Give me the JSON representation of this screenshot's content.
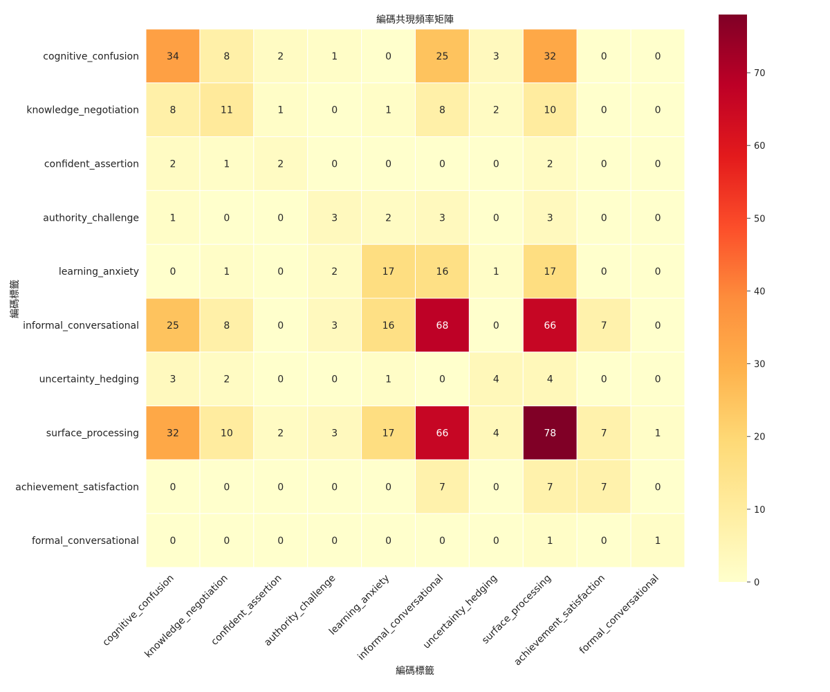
{
  "chart_data": {
    "type": "heatmap",
    "title": "編碼共現頻率矩陣",
    "xlabel": "編碼標籤",
    "ylabel": "編碼標籤",
    "x_categories": [
      "cognitive_confusion",
      "knowledge_negotiation",
      "confident_assertion",
      "authority_challenge",
      "learning_anxiety",
      "informal_conversational",
      "uncertainty_hedging",
      "surface_processing",
      "achievement_satisfaction",
      "formal_conversational"
    ],
    "y_categories": [
      "cognitive_confusion",
      "knowledge_negotiation",
      "confident_assertion",
      "authority_challenge",
      "learning_anxiety",
      "informal_conversational",
      "uncertainty_hedging",
      "surface_processing",
      "achievement_satisfaction",
      "formal_conversational"
    ],
    "values": [
      [
        34,
        8,
        2,
        1,
        0,
        25,
        3,
        32,
        0,
        0
      ],
      [
        8,
        11,
        1,
        0,
        1,
        8,
        2,
        10,
        0,
        0
      ],
      [
        2,
        1,
        2,
        0,
        0,
        0,
        0,
        2,
        0,
        0
      ],
      [
        1,
        0,
        0,
        3,
        2,
        3,
        0,
        3,
        0,
        0
      ],
      [
        0,
        1,
        0,
        2,
        17,
        16,
        1,
        17,
        0,
        0
      ],
      [
        25,
        8,
        0,
        3,
        16,
        68,
        0,
        66,
        7,
        0
      ],
      [
        3,
        2,
        0,
        0,
        1,
        0,
        4,
        4,
        0,
        0
      ],
      [
        32,
        10,
        2,
        3,
        17,
        66,
        4,
        78,
        7,
        1
      ],
      [
        0,
        0,
        0,
        0,
        0,
        7,
        0,
        7,
        7,
        0
      ],
      [
        0,
        0,
        0,
        0,
        0,
        0,
        0,
        1,
        0,
        1
      ]
    ],
    "colormap": "YlOrRd",
    "vmin": 0,
    "vmax": 78,
    "colorbar_ticks": [
      0,
      10,
      20,
      30,
      40,
      50,
      60,
      70
    ],
    "annotated": true
  }
}
